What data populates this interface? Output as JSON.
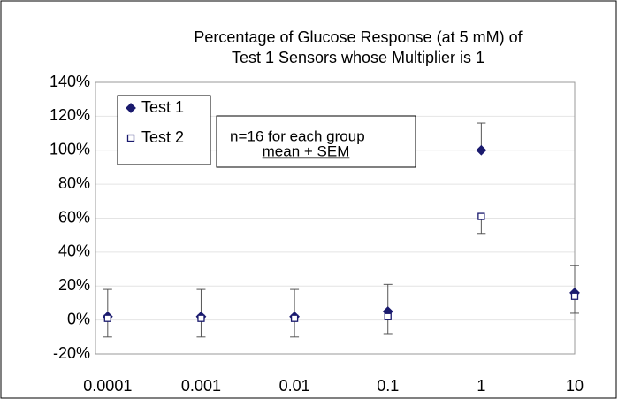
{
  "chart_data": {
    "type": "scatter",
    "title": [
      "Percentage of Glucose Response (at 5 mM) of",
      "Test 1 Sensors whose Multiplier is 1"
    ],
    "x": [
      0.0001,
      0.001,
      0.01,
      0.1,
      1,
      10
    ],
    "series": [
      {
        "name": "Test 1",
        "color": "#1a1a6e",
        "marker": "diamond",
        "filled": true,
        "error_direction": "plus",
        "values": [
          2,
          2,
          2,
          5,
          100,
          16
        ],
        "errors": [
          16,
          16,
          16,
          16,
          16,
          16
        ]
      },
      {
        "name": "Test 2",
        "color": "#1a1a6e",
        "marker": "square",
        "filled": false,
        "error_direction": "minus",
        "values": [
          1,
          1,
          1,
          2,
          61,
          14
        ],
        "errors": [
          11,
          11,
          11,
          10,
          10,
          10
        ]
      }
    ],
    "xlog": true,
    "xlim": [
      7.4e-05,
      10
    ],
    "xticks": [
      0.0001,
      0.001,
      0.01,
      0.1,
      1,
      10
    ],
    "ylim": [
      -20,
      140
    ],
    "yticks": [
      {
        "value": -20,
        "label": "-20%"
      },
      {
        "value": 0,
        "label": "0%"
      },
      {
        "value": 20,
        "label": "20%"
      },
      {
        "value": 40,
        "label": "40%"
      },
      {
        "value": 60,
        "label": "60%"
      },
      {
        "value": 80,
        "label": "80%"
      },
      {
        "value": 100,
        "label": "100%"
      },
      {
        "value": 120,
        "label": "120%"
      },
      {
        "value": 140,
        "label": "140%"
      }
    ],
    "grid": true,
    "legend": "upper left",
    "annotations": [
      "n=16 for each group",
      "mean + SEM"
    ]
  }
}
